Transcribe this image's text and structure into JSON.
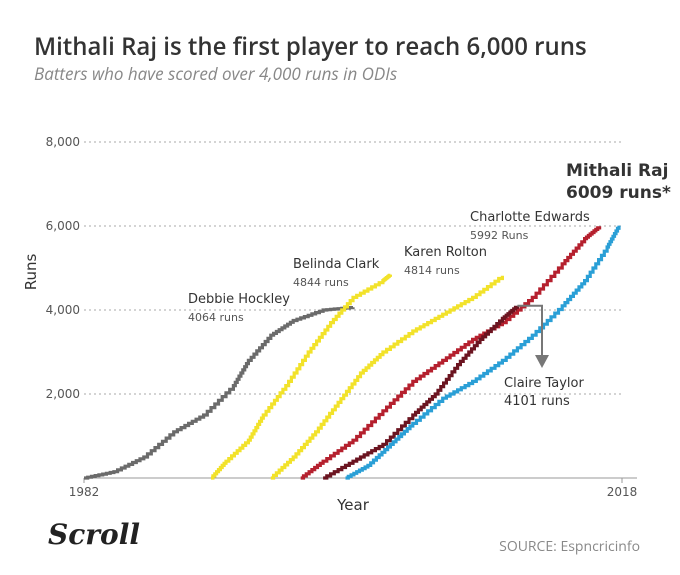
{
  "title": "Mithali Raj is the first player to reach 6,000 runs",
  "subtitle": "Batters who have scored over 4,000 runs in ODIs",
  "source": "SOURCE: Espncricinfo",
  "logo": "Scroll",
  "chart_data": {
    "type": "line",
    "xlabel": "Year",
    "ylabel": "Runs",
    "xlim": [
      1982,
      2018
    ],
    "ylim": [
      0,
      8000
    ],
    "x_ticks": [
      "1982",
      "2018"
    ],
    "y_ticks": [
      {
        "value": 2000,
        "label": "2,000"
      },
      {
        "value": 4000,
        "label": "4,000"
      },
      {
        "value": 6000,
        "label": "6,000"
      },
      {
        "value": 8000,
        "label": "8,000"
      }
    ],
    "grid": "horizontal-dotted",
    "series": [
      {
        "name": "Debbie Hockley",
        "color": "#6b6b6b",
        "label_lines": [
          "Debbie Hockley",
          "4064 runs"
        ],
        "points": [
          [
            1982,
            0
          ],
          [
            1984,
            150
          ],
          [
            1986,
            500
          ],
          [
            1988,
            1100
          ],
          [
            1990,
            1500
          ],
          [
            1992,
            2200
          ],
          [
            1993,
            2800
          ],
          [
            1994.5,
            3400
          ],
          [
            1996,
            3750
          ],
          [
            1998,
            4000
          ],
          [
            2000,
            4064
          ]
        ]
      },
      {
        "name": "Belinda Clark",
        "color": "#f2e22a",
        "label_lines": [
          "Belinda Clark",
          "4844 runs"
        ],
        "points": [
          [
            1990.5,
            0
          ],
          [
            1991.5,
            400
          ],
          [
            1993,
            900
          ],
          [
            1994,
            1500
          ],
          [
            1995.5,
            2200
          ],
          [
            1997,
            3000
          ],
          [
            1998.5,
            3700
          ],
          [
            2000,
            4300
          ],
          [
            2002,
            4700
          ],
          [
            2002.5,
            4844
          ]
        ]
      },
      {
        "name": "Karen Rolton",
        "color": "#f2e22a",
        "label_lines": [
          "Karen Rolton",
          "4814  runs"
        ],
        "points": [
          [
            1994.5,
            0
          ],
          [
            1996,
            500
          ],
          [
            1997.5,
            1100
          ],
          [
            1999,
            1800
          ],
          [
            2000.5,
            2500
          ],
          [
            2002,
            3000
          ],
          [
            2004,
            3500
          ],
          [
            2006,
            3900
          ],
          [
            2008,
            4300
          ],
          [
            2010,
            4814
          ]
        ]
      },
      {
        "name": "Charlotte Edwards",
        "color": "#b5202e",
        "label_lines": [
          "Charlotte Edwards",
          "5992 Runs"
        ],
        "points": [
          [
            1996.5,
            0
          ],
          [
            1998,
            400
          ],
          [
            2000,
            900
          ],
          [
            2002,
            1600
          ],
          [
            2004,
            2300
          ],
          [
            2006,
            2800
          ],
          [
            2008,
            3300
          ],
          [
            2010,
            3700
          ],
          [
            2012,
            4300
          ],
          [
            2014,
            5100
          ],
          [
            2015.5,
            5700
          ],
          [
            2016.5,
            5992
          ]
        ]
      },
      {
        "name": "Claire Taylor",
        "color": "#6b1420",
        "label_lines": [
          "Claire Taylor",
          "4101 runs"
        ],
        "points": [
          [
            1998,
            0
          ],
          [
            2000,
            400
          ],
          [
            2002,
            800
          ],
          [
            2004,
            1500
          ],
          [
            2005.5,
            2000
          ],
          [
            2007,
            2700
          ],
          [
            2008.5,
            3300
          ],
          [
            2010,
            3800
          ],
          [
            2011,
            4101
          ]
        ]
      },
      {
        "name": "Mithali Raj",
        "color": "#2a9fd6",
        "label_lines": [
          "Mithali Raj",
          "6009 runs*"
        ],
        "points": [
          [
            1999.5,
            0
          ],
          [
            2001,
            300
          ],
          [
            2002.5,
            800
          ],
          [
            2004,
            1300
          ],
          [
            2006,
            1900
          ],
          [
            2008,
            2300
          ],
          [
            2010,
            2800
          ],
          [
            2012,
            3400
          ],
          [
            2014,
            4100
          ],
          [
            2015.5,
            4700
          ],
          [
            2017,
            5500
          ],
          [
            2017.8,
            6009
          ]
        ]
      }
    ]
  }
}
